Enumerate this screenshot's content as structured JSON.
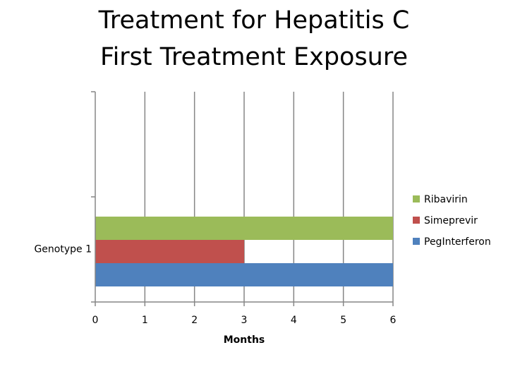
{
  "chart_data": {
    "type": "bar",
    "orientation": "horizontal",
    "stacked": false,
    "title": [
      "Treatment for Hepatitis C",
      "First Treatment Exposure"
    ],
    "xlabel": "Months",
    "ylabel": "",
    "xlim": [
      0,
      6
    ],
    "x_ticks": [
      "0",
      "1",
      "2",
      "3",
      "4",
      "5",
      "6"
    ],
    "categories": [
      "Genotype 1"
    ],
    "series": [
      {
        "name": "PegInterferon",
        "values": [
          6
        ],
        "color": "#4f81bd"
      },
      {
        "name": "Simeprevir",
        "values": [
          3
        ],
        "color": "#c0504d"
      },
      {
        "name": "Ribavirin",
        "values": [
          6
        ],
        "color": "#9bbb59"
      }
    ],
    "grid": "vertical",
    "legend_position": "right"
  }
}
